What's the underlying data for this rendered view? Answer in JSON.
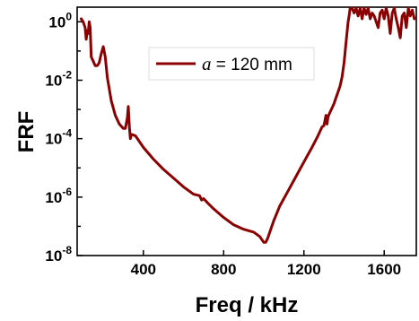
{
  "chart_data": {
    "type": "line",
    "xlabel": "Freq / kHz",
    "ylabel": "FRF",
    "xlim": [
      70,
      1760
    ],
    "ylim_log10": [
      -8,
      0.5
    ],
    "y_scale": "log",
    "grid": false,
    "legend_position": "top-center",
    "x_ticks": [
      {
        "value": 400,
        "label": "400"
      },
      {
        "value": 800,
        "label": "800"
      },
      {
        "value": 1200,
        "label": "1200"
      },
      {
        "value": 1600,
        "label": "1600"
      }
    ],
    "y_ticks": [
      {
        "exp": 0,
        "base": "10",
        "power": "0"
      },
      {
        "exp": -2,
        "base": "10",
        "power": "-2"
      },
      {
        "exp": -4,
        "base": "10",
        "power": "-4"
      },
      {
        "exp": -6,
        "base": "10",
        "power": "-6"
      },
      {
        "exp": -8,
        "base": "10",
        "power": "-8"
      }
    ],
    "series": [
      {
        "legend_var": "a",
        "legend_rest": " = 120 mm",
        "color": "#8b0000",
        "x": [
          90,
          100,
          110,
          115,
          120,
          125,
          130,
          135,
          140,
          150,
          160,
          170,
          180,
          190,
          200,
          210,
          220,
          240,
          260,
          280,
          300,
          310,
          320,
          325,
          330,
          335,
          340,
          360,
          400,
          450,
          500,
          550,
          600,
          650,
          680,
          690,
          700,
          720,
          750,
          800,
          850,
          900,
          950,
          980,
          1000,
          1010,
          1020,
          1030,
          1050,
          1080,
          1120,
          1160,
          1200,
          1240,
          1270,
          1290,
          1300,
          1310,
          1315,
          1320,
          1330,
          1340,
          1350,
          1360,
          1370,
          1380,
          1390,
          1400,
          1410,
          1420,
          1425,
          1430,
          1440,
          1450,
          1460,
          1470,
          1480,
          1490,
          1500,
          1510,
          1520,
          1530,
          1540,
          1550,
          1560,
          1570,
          1580,
          1590,
          1600,
          1610,
          1620,
          1630,
          1640,
          1650,
          1660,
          1670,
          1680,
          1690,
          1700,
          1710,
          1720,
          1730,
          1740,
          1750
        ],
        "y_log10": [
          0.1,
          0,
          -0.2,
          -0.6,
          -0.3,
          -0.4,
          0,
          -0.2,
          -1.2,
          -1.35,
          -1.5,
          -1.5,
          -1.4,
          -1.1,
          -0.85,
          -1.2,
          -1.9,
          -2.7,
          -3.2,
          -3.5,
          -3.65,
          -3.65,
          -3.3,
          -2.9,
          -3.6,
          -4,
          -3.85,
          -3.9,
          -4.3,
          -4.7,
          -5.05,
          -5.35,
          -5.65,
          -5.9,
          -5.95,
          -6.1,
          -6.05,
          -6.2,
          -6.4,
          -6.7,
          -6.95,
          -7.1,
          -7.2,
          -7.35,
          -7.55,
          -7.55,
          -7.4,
          -7.2,
          -6.8,
          -6.3,
          -5.8,
          -5.3,
          -4.8,
          -4.3,
          -3.9,
          -3.6,
          -3.55,
          -3.2,
          -3.5,
          -3.25,
          -3.1,
          -2.95,
          -2.8,
          -2.6,
          -2.4,
          -2.2,
          -1.9,
          -1.4,
          -0.7,
          0,
          0.2,
          0.45,
          0.5,
          0.3,
          0.6,
          0.2,
          0.55,
          0.1,
          0.6,
          0.25,
          0.55,
          0.1,
          0.3,
          0.2,
          0,
          -0.2,
          0.3,
          0.4,
          0.1,
          0.55,
          0.2,
          -0.4,
          0.3,
          0.6,
          0.1,
          -0.2,
          -0.55,
          0.2,
          0.3,
          -0.2,
          0.55,
          0.2,
          0.4,
          0.1
        ]
      }
    ]
  }
}
